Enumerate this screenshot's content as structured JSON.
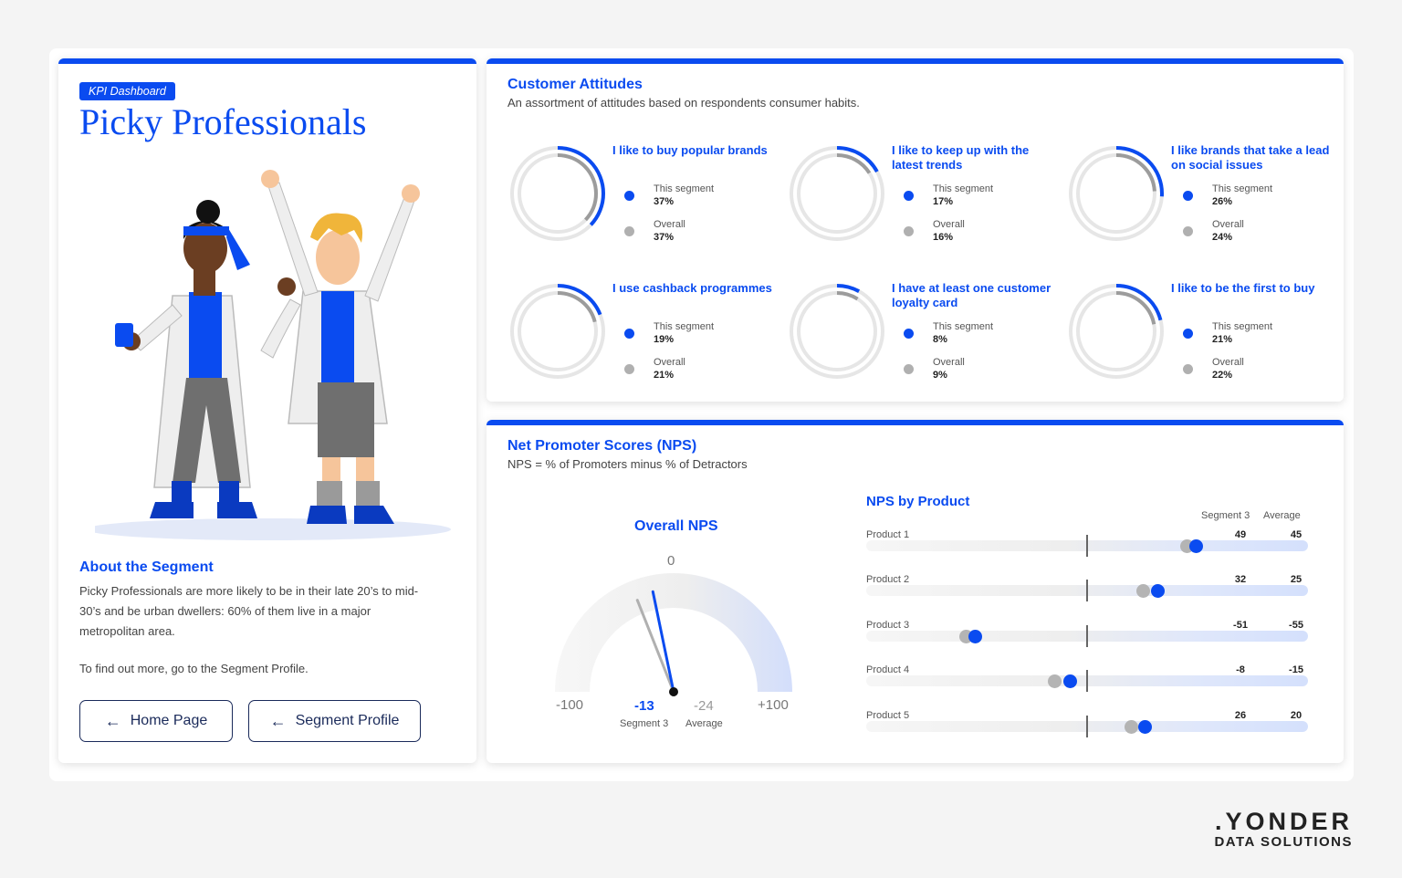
{
  "header": {
    "badge": "KPI Dashboard",
    "title": "Picky Professionals"
  },
  "about": {
    "heading": "About the Segment",
    "text": "Picky Professionals are more likely to be in their late 20’s to mid-30’s and be urban dwellers: 60% of them live in a major metropolitan area.",
    "more": "To find out more, go to the Segment Profile."
  },
  "buttons": {
    "home": "Home Page",
    "profile": "Segment Profile",
    "arrow_icon": "←"
  },
  "colors": {
    "accent": "#0a4bf0",
    "neutral": "#b0b0b0"
  },
  "attitudes": {
    "title": "Customer Attitudes",
    "subtitle": "An assortment of attitudes based on respondents consumer habits.",
    "segment_label": "This segment",
    "overall_label": "Overall",
    "items": [
      {
        "label": "I like to buy popular brands",
        "segment": 37,
        "segment_text": "37%",
        "overall": 37,
        "overall_text": "37%"
      },
      {
        "label": "I like to keep up with the latest trends",
        "segment": 17,
        "segment_text": "17%",
        "overall": 16,
        "overall_text": "16%"
      },
      {
        "label": "I like brands that take a lead on social issues",
        "segment": 26,
        "segment_text": "26%",
        "overall": 24,
        "overall_text": "24%"
      },
      {
        "label": "I use cashback programmes",
        "segment": 19,
        "segment_text": "19%",
        "overall": 21,
        "overall_text": "21%"
      },
      {
        "label": "I have at least one customer loyalty card",
        "segment": 8,
        "segment_text": "8%",
        "overall": 9,
        "overall_text": "9%"
      },
      {
        "label": "I like to be the first to buy",
        "segment": 21,
        "segment_text": "21%",
        "overall": 22,
        "overall_text": "22%"
      }
    ]
  },
  "nps": {
    "title": "Net Promoter Scores (NPS)",
    "subtitle": "NPS = % of Promoters minus % of Detractors",
    "gauge": {
      "title": "Overall NPS",
      "min_label": "-100",
      "zero_label": "0",
      "max_label": "+100",
      "segment_value": -13,
      "segment_text": "-13",
      "segment_caption": "Segment 3",
      "average_value": -24,
      "average_text": "-24",
      "average_caption": "Average"
    },
    "by_product": {
      "title": "NPS by Product",
      "col_segment": "Segment 3",
      "col_average": "Average",
      "products": [
        {
          "name": "Product 1",
          "segment": 49,
          "segment_text": "49",
          "average": 45,
          "average_text": "45"
        },
        {
          "name": "Product 2",
          "segment": 32,
          "segment_text": "32",
          "average": 25,
          "average_text": "25"
        },
        {
          "name": "Product 3",
          "segment": -51,
          "segment_text": "-51",
          "average": -55,
          "average_text": "-55"
        },
        {
          "name": "Product 4",
          "segment": -8,
          "segment_text": "-8",
          "average": -15,
          "average_text": "-15"
        },
        {
          "name": "Product 5",
          "segment": 26,
          "segment_text": "26",
          "average": 20,
          "average_text": "20"
        }
      ]
    }
  },
  "logo": {
    "line1": ".YONDER",
    "line2": "DATA SOLUTIONS"
  }
}
